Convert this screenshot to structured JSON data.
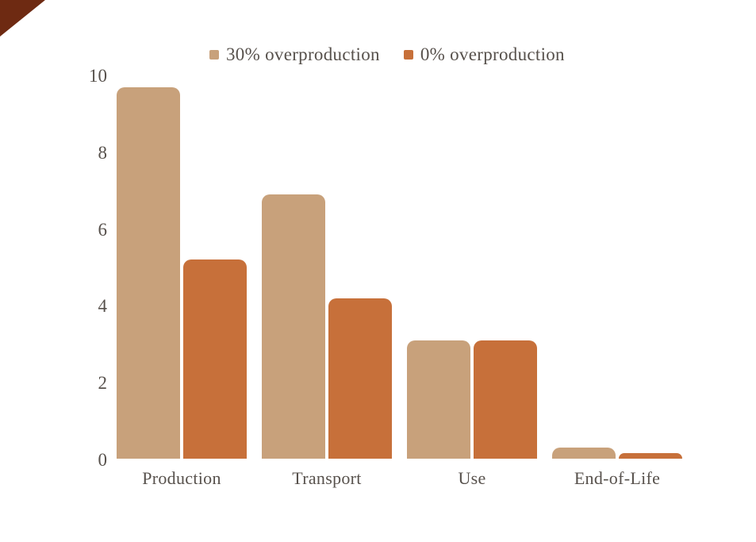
{
  "chart_data": {
    "type": "bar",
    "title": "",
    "categories": [
      "Production",
      "Transport",
      "Use",
      "End-of-Life"
    ],
    "series": [
      {
        "name": "30% overproduction",
        "color": "#c8a17b",
        "values": [
          9.7,
          6.9,
          3.1,
          0.3
        ]
      },
      {
        "name": "0% overproduction",
        "color": "#c7703a",
        "values": [
          5.2,
          4.2,
          3.1,
          0.15
        ]
      }
    ],
    "xlabel": "",
    "ylabel": "",
    "ylim": [
      0,
      10
    ],
    "yticks": [
      0,
      2,
      4,
      6,
      8,
      10
    ],
    "grid": false,
    "legend_position": "top"
  },
  "colors": {
    "background": "#ffffff",
    "text": "#57514c",
    "corner_accent": "#6e2a12"
  }
}
